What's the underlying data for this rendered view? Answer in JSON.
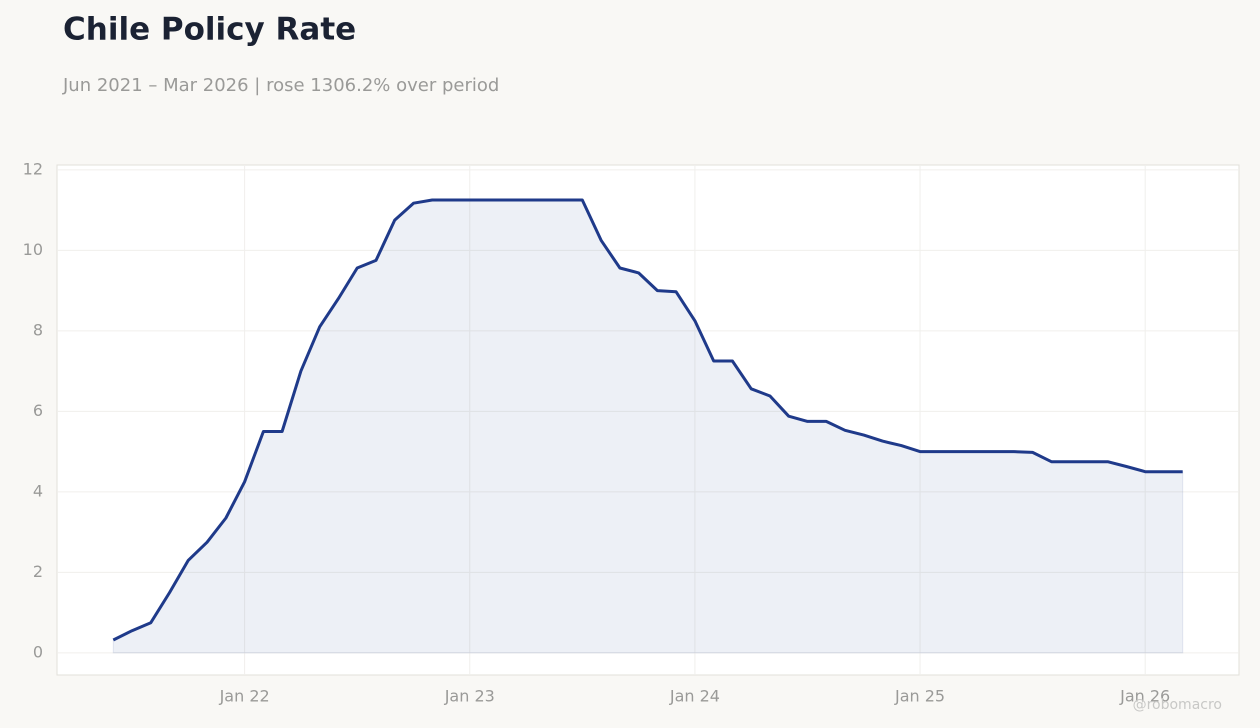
{
  "chart_data": {
    "type": "line",
    "title": "Chile Policy Rate",
    "subtitle": "Jun 2021 – Mar 2026 | rose 1306.2% over period",
    "watermark": "@robomacro",
    "x": [
      "2021-06",
      "2021-07",
      "2021-08",
      "2021-09",
      "2021-10",
      "2021-11",
      "2021-12",
      "2022-01",
      "2022-02",
      "2022-03",
      "2022-04",
      "2022-05",
      "2022-06",
      "2022-07",
      "2022-08",
      "2022-09",
      "2022-10",
      "2022-11",
      "2022-12",
      "2023-01",
      "2023-02",
      "2023-03",
      "2023-04",
      "2023-05",
      "2023-06",
      "2023-07",
      "2023-08",
      "2023-09",
      "2023-10",
      "2023-11",
      "2023-12",
      "2024-01",
      "2024-02",
      "2024-03",
      "2024-04",
      "2024-05",
      "2024-06",
      "2024-07",
      "2024-08",
      "2024-09",
      "2024-10",
      "2024-11",
      "2024-12",
      "2025-01",
      "2025-02",
      "2025-03",
      "2025-04",
      "2025-05",
      "2025-06",
      "2025-07",
      "2025-08",
      "2025-09",
      "2025-10",
      "2025-11",
      "2025-12",
      "2026-01",
      "2026-02",
      "2026-03"
    ],
    "series": [
      {
        "name": "Policy Rate",
        "color": "#1f3a8a",
        "values": [
          0.32,
          0.55,
          0.75,
          1.5,
          2.3,
          2.75,
          3.35,
          4.25,
          5.5,
          5.5,
          7.0,
          8.1,
          8.8,
          9.56,
          9.75,
          10.75,
          11.17,
          11.25,
          11.25,
          11.25,
          11.25,
          11.25,
          11.25,
          11.25,
          11.25,
          11.25,
          10.25,
          9.56,
          9.44,
          9.0,
          8.97,
          8.25,
          7.25,
          7.25,
          6.56,
          6.38,
          5.88,
          5.75,
          5.75,
          5.53,
          5.41,
          5.26,
          5.15,
          5.0,
          5.0,
          5.0,
          5.0,
          5.0,
          5.0,
          4.98,
          4.75,
          4.75,
          4.75,
          4.75,
          4.63,
          4.5,
          4.5,
          4.5
        ]
      }
    ],
    "xlim": [
      "2021-03",
      "2026-06"
    ],
    "xticks": [
      {
        "value": "2022-01",
        "label": "Jan 22"
      },
      {
        "value": "2023-01",
        "label": "Jan 23"
      },
      {
        "value": "2024-01",
        "label": "Jan 24"
      },
      {
        "value": "2025-01",
        "label": "Jan 25"
      },
      {
        "value": "2026-01",
        "label": "Jan 26"
      }
    ],
    "ylim": [
      -0.55,
      12.12
    ],
    "yticks": [
      0,
      2,
      4,
      6,
      8,
      10,
      12
    ],
    "grid": true
  }
}
